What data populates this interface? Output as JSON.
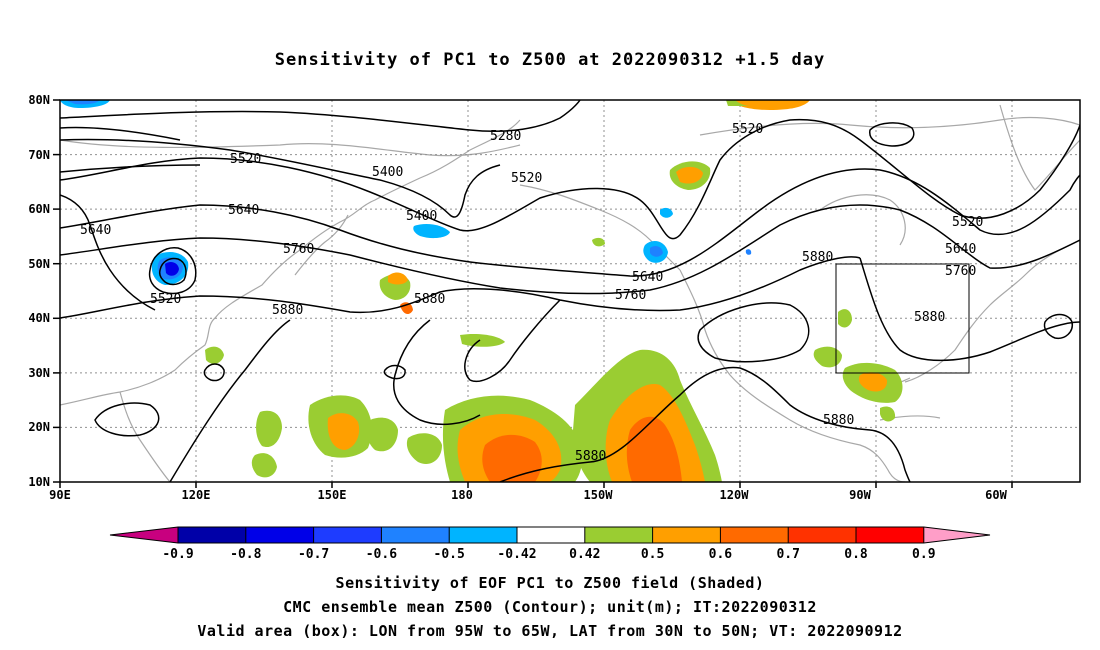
{
  "title": "Sensitivity of PC1 to Z500 at 2022090312 +1.5 day",
  "map": {
    "lon_labels": [
      "90E",
      "120E",
      "150E",
      "180",
      "150W",
      "120W",
      "90W",
      "60W"
    ],
    "lat_labels": [
      "80N",
      "70N",
      "60N",
      "50N",
      "40N",
      "30N",
      "20N",
      "10N"
    ],
    "contour_labels": [
      "5280",
      "5400",
      "5400",
      "5520",
      "5520",
      "5520",
      "5520",
      "5520",
      "5640",
      "5640",
      "5640",
      "5640",
      "5760",
      "5760",
      "5760",
      "5880",
      "5880",
      "5880",
      "5880",
      "5880",
      "5880"
    ],
    "valid_box": {
      "lon_from": "95W",
      "lon_to": "65W",
      "lat_from": "30N",
      "lat_to": "50N"
    }
  },
  "colorbar": {
    "labels": [
      "-0.9",
      "-0.8",
      "-0.7",
      "-0.6",
      "-0.5",
      "-0.42",
      "0.42",
      "0.5",
      "0.6",
      "0.7",
      "0.8",
      "0.9"
    ],
    "colors": [
      "#c8007f",
      "#0000a8",
      "#0000e8",
      "#1e3cff",
      "#1f82ff",
      "#00b4ff",
      "#ffffff",
      "#9acd32",
      "#ff9f00",
      "#ff6a00",
      "#ff3200",
      "#ff0000",
      "#ff9ec8"
    ]
  },
  "captions": [
    "Sensitivity of EOF PC1 to Z500 field (Shaded)",
    "CMC ensemble mean Z500 (Contour); unit(m); IT:2022090312",
    "Valid area (box): LON from 95W to 65W, LAT from 30N to 50N; VT: 2022090912"
  ]
}
